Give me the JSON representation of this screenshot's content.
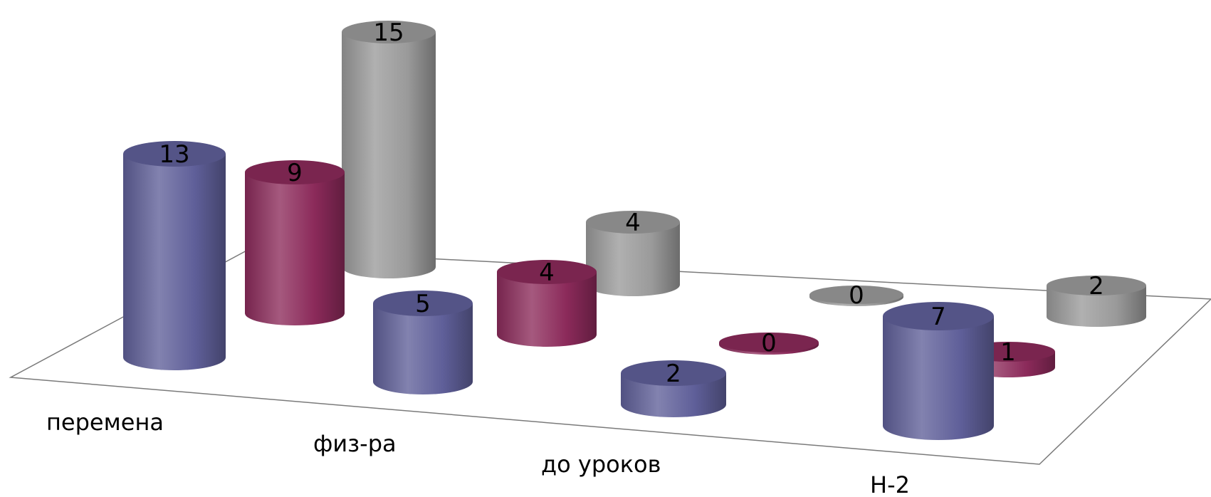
{
  "chart_data": {
    "type": "bar",
    "shape": "3d-cylinder",
    "categories": [
      "перемена",
      "физ-ра",
      "до уроков",
      "Н-2"
    ],
    "series": [
      {
        "values": [
          13,
          5,
          2,
          7
        ],
        "color": "#5f5f99"
      },
      {
        "values": [
          9,
          4,
          0,
          1
        ],
        "color": "#8b2a5a"
      },
      {
        "values": [
          15,
          4,
          0,
          2
        ],
        "color": "#9a9a9a"
      }
    ],
    "data_labels": true,
    "grid": false,
    "legend": "none",
    "title": "",
    "xlabel": "",
    "ylabel": ""
  }
}
